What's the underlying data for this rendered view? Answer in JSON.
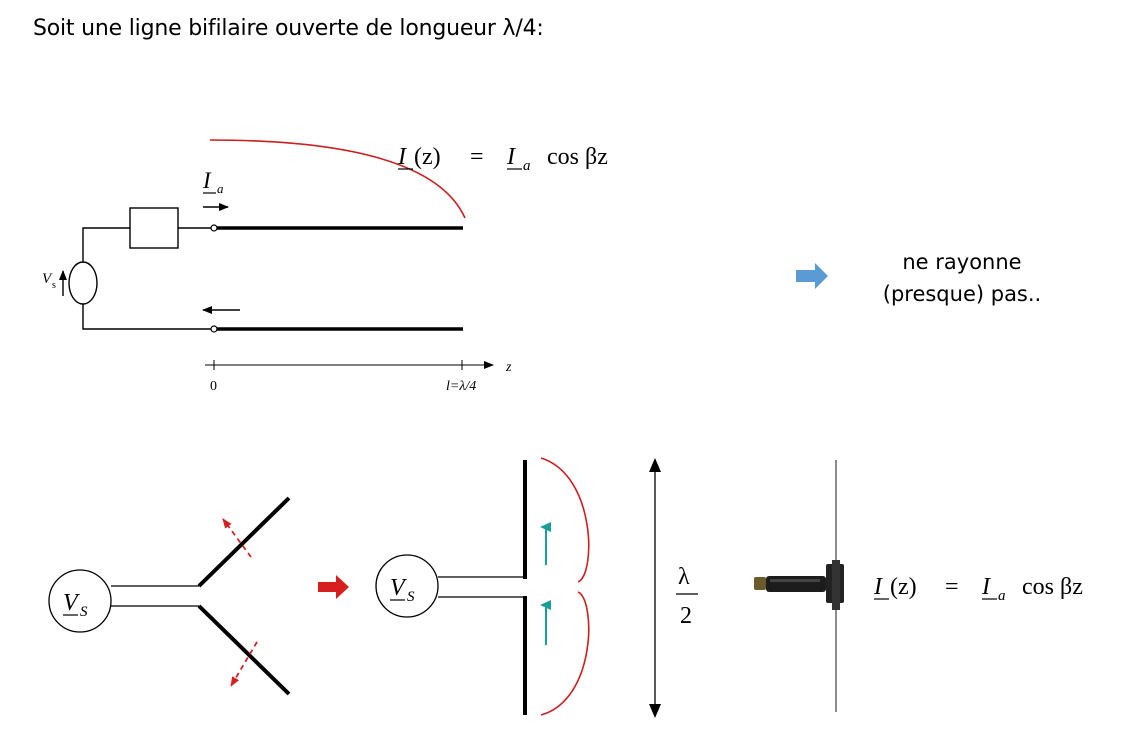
{
  "title": "Soit une ligne bifilaire ouverte de longueur λ/4:",
  "statement": {
    "line1": "ne rayonne",
    "line2": "(presque) pas.."
  },
  "top_figure": {
    "eq_I": "I",
    "eq_z": "(z)",
    "eq_equals": "=",
    "eq_Ia": "I",
    "eq_a": "a",
    "eq_cos": "cos βz",
    "current_I": "I",
    "current_a": "a",
    "source_V": "V",
    "source_s": "s",
    "axis_z": "z",
    "axis_zero": "0",
    "axis_l": "l=λ/4"
  },
  "bottom_figure": {
    "source1_V": "V",
    "source1_S": "S",
    "source2_V": "V",
    "source2_S": "S",
    "lambda": "λ",
    "two": "2",
    "eq_I": "I",
    "eq_z": "(z)",
    "eq_equals": "=",
    "eq_Ia": "I",
    "eq_a": "a",
    "eq_cos": "cos βz"
  },
  "colors": {
    "red_curve": "#cc1f1f",
    "blue_arrow": "#5b9bd5",
    "teal_arrow": "#1a9e9a",
    "red_arrow": "#d62020"
  }
}
